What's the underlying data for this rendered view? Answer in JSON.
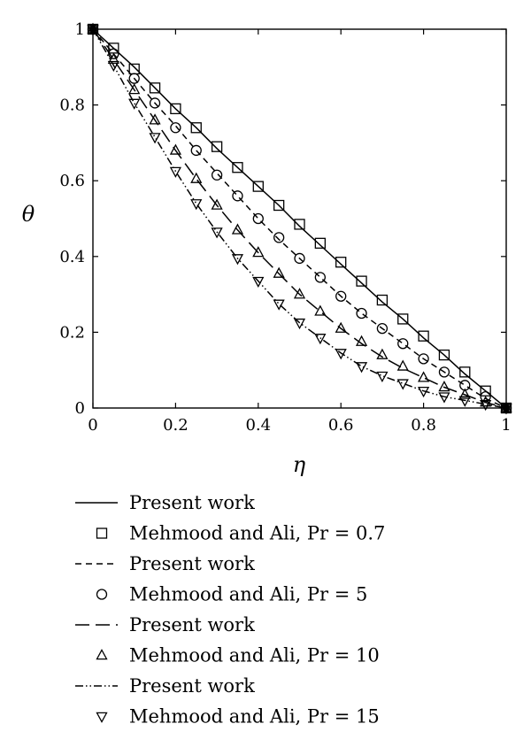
{
  "chart_data": {
    "type": "line",
    "title": "",
    "xlabel": "η",
    "ylabel": "θ",
    "xlim": [
      0,
      1
    ],
    "ylim": [
      0,
      1
    ],
    "xticks": [
      "0",
      "0.2",
      "0.4",
      "0.6",
      "0.8",
      "1"
    ],
    "yticks": [
      "0",
      "0.2",
      "0.4",
      "0.6",
      "0.8",
      "1"
    ],
    "grid": false,
    "legend_position": "below",
    "lines": [
      {
        "legend": "Present work",
        "style": "solid",
        "x": [
          0,
          0.05,
          0.1,
          0.15,
          0.2,
          0.25,
          0.3,
          0.35,
          0.4,
          0.45,
          0.5,
          0.55,
          0.6,
          0.65,
          0.7,
          0.75,
          0.8,
          0.85,
          0.9,
          0.95,
          1
        ],
        "y": [
          1,
          0.95,
          0.9,
          0.845,
          0.79,
          0.74,
          0.685,
          0.635,
          0.585,
          0.535,
          0.48,
          0.43,
          0.38,
          0.33,
          0.28,
          0.235,
          0.185,
          0.14,
          0.09,
          0.045,
          0
        ]
      },
      {
        "legend": "Present work",
        "style": "short-dash",
        "x": [
          0,
          0.05,
          0.1,
          0.15,
          0.2,
          0.25,
          0.3,
          0.35,
          0.4,
          0.45,
          0.5,
          0.55,
          0.6,
          0.65,
          0.7,
          0.75,
          0.8,
          0.85,
          0.9,
          0.95,
          1
        ],
        "y": [
          1,
          0.935,
          0.87,
          0.805,
          0.745,
          0.68,
          0.62,
          0.56,
          0.5,
          0.445,
          0.395,
          0.345,
          0.295,
          0.25,
          0.21,
          0.17,
          0.13,
          0.095,
          0.06,
          0.025,
          0
        ]
      },
      {
        "legend": "Present work",
        "style": "long-dash",
        "x": [
          0,
          0.05,
          0.1,
          0.15,
          0.2,
          0.25,
          0.3,
          0.35,
          0.4,
          0.45,
          0.5,
          0.55,
          0.6,
          0.65,
          0.7,
          0.75,
          0.8,
          0.85,
          0.9,
          0.95,
          1
        ],
        "y": [
          1,
          0.92,
          0.84,
          0.76,
          0.68,
          0.605,
          0.535,
          0.47,
          0.41,
          0.355,
          0.3,
          0.255,
          0.21,
          0.17,
          0.135,
          0.105,
          0.08,
          0.055,
          0.035,
          0.015,
          0
        ]
      },
      {
        "legend": "Present work",
        "style": "dash-dot-dot",
        "x": [
          0,
          0.05,
          0.1,
          0.15,
          0.2,
          0.25,
          0.3,
          0.35,
          0.4,
          0.45,
          0.5,
          0.55,
          0.6,
          0.65,
          0.7,
          0.75,
          0.8,
          0.85,
          0.9,
          0.95,
          1
        ],
        "y": [
          1,
          0.905,
          0.805,
          0.715,
          0.625,
          0.54,
          0.465,
          0.395,
          0.335,
          0.275,
          0.225,
          0.185,
          0.145,
          0.11,
          0.085,
          0.065,
          0.045,
          0.03,
          0.02,
          0.01,
          0
        ]
      }
    ],
    "markers": [
      {
        "legend": "Mehmood and Ali, Pr = 0.7",
        "symbol": "square",
        "x": [
          0,
          0.05,
          0.1,
          0.15,
          0.2,
          0.25,
          0.3,
          0.35,
          0.4,
          0.45,
          0.5,
          0.55,
          0.6,
          0.65,
          0.7,
          0.75,
          0.8,
          0.85,
          0.9,
          0.95,
          1
        ],
        "y": [
          1,
          0.95,
          0.895,
          0.845,
          0.79,
          0.74,
          0.69,
          0.635,
          0.585,
          0.535,
          0.485,
          0.435,
          0.385,
          0.335,
          0.285,
          0.235,
          0.19,
          0.14,
          0.095,
          0.045,
          0
        ]
      },
      {
        "legend": "Mehmood and Ali, Pr = 5",
        "symbol": "circle",
        "x": [
          0,
          0.05,
          0.1,
          0.15,
          0.2,
          0.25,
          0.3,
          0.35,
          0.4,
          0.45,
          0.5,
          0.55,
          0.6,
          0.65,
          0.7,
          0.75,
          0.8,
          0.85,
          0.9,
          0.95,
          1
        ],
        "y": [
          1,
          0.935,
          0.87,
          0.805,
          0.74,
          0.68,
          0.615,
          0.56,
          0.5,
          0.45,
          0.395,
          0.345,
          0.295,
          0.25,
          0.21,
          0.17,
          0.13,
          0.095,
          0.06,
          0.03,
          0
        ]
      },
      {
        "legend": "Mehmood and Ali, Pr = 10",
        "symbol": "triangle-up",
        "x": [
          0,
          0.05,
          0.1,
          0.15,
          0.2,
          0.25,
          0.3,
          0.35,
          0.4,
          0.45,
          0.5,
          0.55,
          0.6,
          0.65,
          0.7,
          0.75,
          0.8,
          0.85,
          0.9,
          0.95,
          1
        ],
        "y": [
          1,
          0.92,
          0.84,
          0.76,
          0.68,
          0.605,
          0.535,
          0.47,
          0.41,
          0.355,
          0.3,
          0.255,
          0.21,
          0.175,
          0.14,
          0.11,
          0.08,
          0.055,
          0.035,
          0.015,
          0
        ]
      },
      {
        "legend": "Mehmood and Ali, Pr = 15",
        "symbol": "triangle-down",
        "x": [
          0,
          0.05,
          0.1,
          0.15,
          0.2,
          0.25,
          0.3,
          0.35,
          0.4,
          0.45,
          0.5,
          0.55,
          0.6,
          0.65,
          0.7,
          0.75,
          0.8,
          0.85,
          0.9,
          0.95,
          1
        ],
        "y": [
          1,
          0.905,
          0.805,
          0.715,
          0.625,
          0.54,
          0.465,
          0.395,
          0.335,
          0.275,
          0.225,
          0.185,
          0.145,
          0.11,
          0.085,
          0.065,
          0.045,
          0.03,
          0.02,
          0.01,
          0
        ]
      }
    ],
    "legend": [
      {
        "label": "Present work",
        "kind": "line",
        "style": "solid"
      },
      {
        "label": "Mehmood and Ali, Pr = 0.7",
        "kind": "marker",
        "symbol": "square"
      },
      {
        "label": "Present work",
        "kind": "line",
        "style": "short-dash"
      },
      {
        "label": "Mehmood and Ali, Pr = 5",
        "kind": "marker",
        "symbol": "circle"
      },
      {
        "label": "Present work",
        "kind": "line",
        "style": "long-dash"
      },
      {
        "label": "Mehmood and Ali, Pr = 10",
        "kind": "marker",
        "symbol": "triangle-up"
      },
      {
        "label": "Present work",
        "kind": "line",
        "style": "dash-dot-dot"
      },
      {
        "label": "Mehmood and Ali, Pr = 15",
        "kind": "marker",
        "symbol": "triangle-down"
      }
    ]
  }
}
